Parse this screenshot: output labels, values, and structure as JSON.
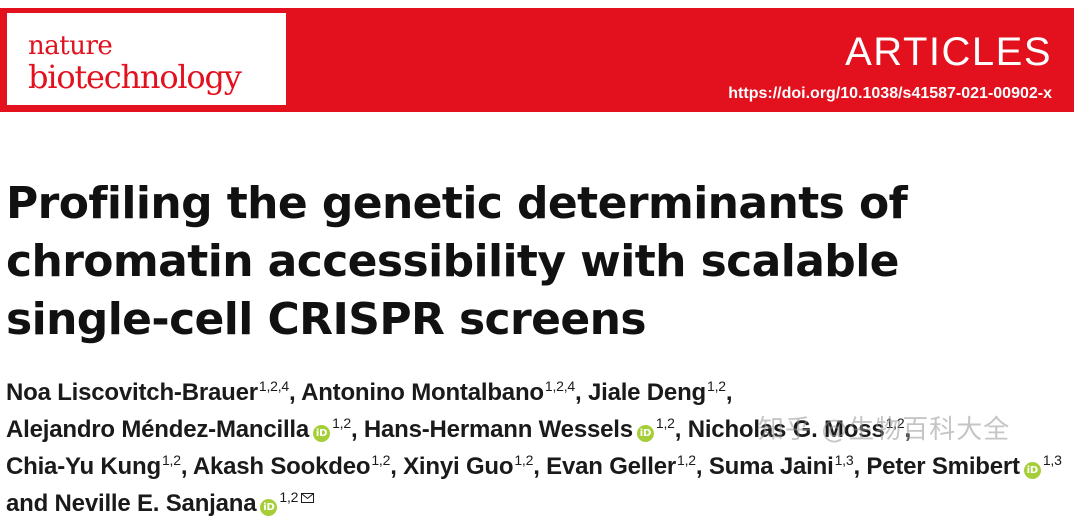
{
  "journal": {
    "logo_line1": "nature",
    "logo_line2": "biotechnology",
    "section": "ARTICLES",
    "doi": "https://doi.org/10.1038/s41587-021-00902-x",
    "brand_color": "#e3101e"
  },
  "article": {
    "title": "Profiling the genetic determinants of chromatin accessibility with scalable single-cell CRISPR screens"
  },
  "authors": [
    {
      "name": "Noa Liscovitch-Brauer",
      "aff": "1,2,4",
      "orcid": false
    },
    {
      "name": "Antonino Montalbano",
      "aff": "1,2,4",
      "orcid": false
    },
    {
      "name": "Jiale Deng",
      "aff": "1,2",
      "orcid": false
    },
    {
      "name": "Alejandro Méndez-Mancilla",
      "aff": "1,2",
      "orcid": true
    },
    {
      "name": "Hans-Hermann Wessels",
      "aff": "1,2",
      "orcid": true
    },
    {
      "name": "Nicholas G. Moss",
      "aff": "1,2",
      "orcid": false
    },
    {
      "name": "Chia-Yu Kung",
      "aff": "1,2",
      "orcid": false
    },
    {
      "name": "Akash Sookdeo",
      "aff": "1,2",
      "orcid": false
    },
    {
      "name": "Xinyi Guo",
      "aff": "1,2",
      "orcid": false
    },
    {
      "name": "Evan Geller",
      "aff": "1,2",
      "orcid": false
    },
    {
      "name": "Suma Jaini",
      "aff": "1,3",
      "orcid": false
    },
    {
      "name": "Peter Smibert",
      "aff": "1,3",
      "orcid": true
    },
    {
      "name": "Neville E. Sanjana",
      "aff": "1,2",
      "orcid": true,
      "corresponding": true
    }
  ],
  "author_separator": ", ",
  "author_last_joiner": " and ",
  "orcid_icon": "orcid-icon",
  "orcid_glyph": "iD",
  "orcid_color": "#a6ce39",
  "watermark": "知乎 @生物百科大全"
}
